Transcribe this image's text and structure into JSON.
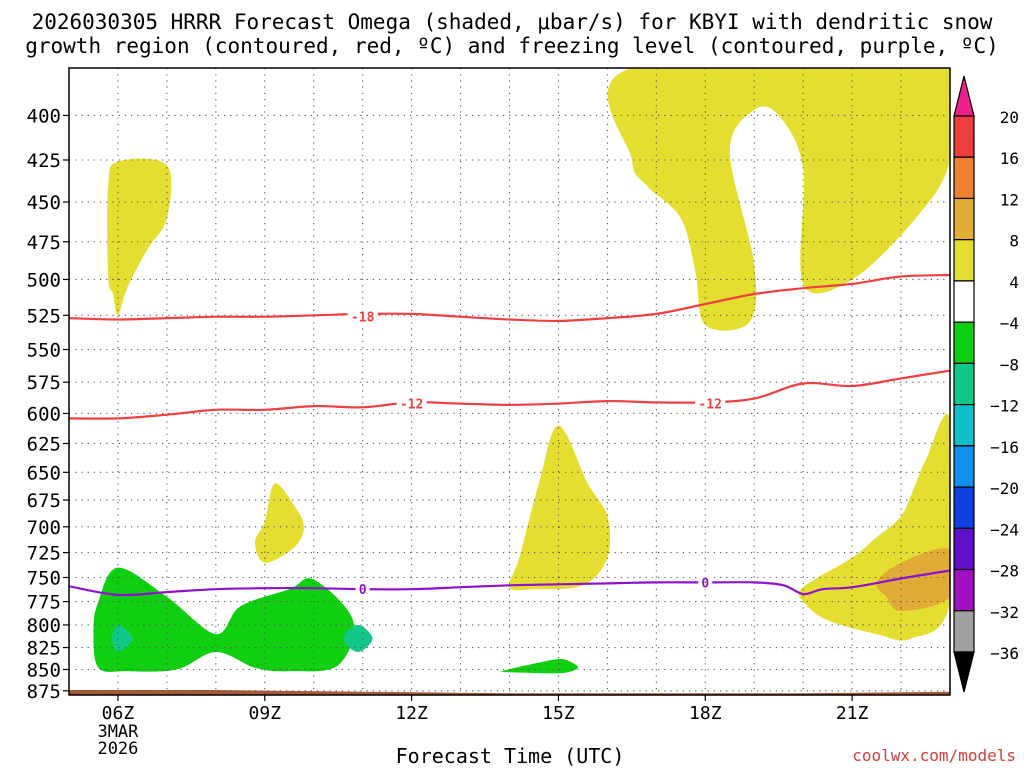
{
  "title": {
    "line1": "2026030305 HRRR Forecast Omega (shaded, μbar/s) for KBYI with dendritic snow",
    "line2": "growth region (contoured, red, ºC) and freezing level (contoured, purple, ºC)"
  },
  "credit": "coolwx.com/models",
  "chart_data": {
    "type": "contour",
    "title": "2026030305 HRRR Forecast Omega (shaded, μbar/s) for KBYI with dendritic snow growth region (contoured, red, ºC) and freezing level (contoured, purple, ºC)",
    "xlabel": "Forecast Time (UTC)",
    "ylabel": "",
    "x_range_hours": [
      5.0,
      23.0
    ],
    "y_range_mb": [
      375,
      880
    ],
    "y_scale": "log",
    "grid": true,
    "x_ticks": [
      {
        "hour": 6,
        "label": "06Z",
        "sub": [
          "3MAR",
          "2026"
        ]
      },
      {
        "hour": 9,
        "label": "09Z"
      },
      {
        "hour": 12,
        "label": "12Z"
      },
      {
        "hour": 15,
        "label": "15Z"
      },
      {
        "hour": 18,
        "label": "18Z"
      },
      {
        "hour": 21,
        "label": "21Z"
      }
    ],
    "y_ticks": [
      400,
      425,
      450,
      475,
      500,
      525,
      550,
      575,
      600,
      625,
      650,
      675,
      700,
      725,
      750,
      775,
      800,
      825,
      850,
      875
    ],
    "colorbar": {
      "levels": [
        "20",
        "16",
        "12",
        "8",
        "4",
        "−4",
        "−8",
        "−12",
        "−16",
        "−20",
        "−24",
        "−28",
        "−32",
        "−36"
      ],
      "colors": [
        "#ee1f8b",
        "#ee3d3d",
        "#ee8030",
        "#e0ac35",
        "#e3de30",
        "#ffffff",
        "#10cf10",
        "#10c88a",
        "#10c0c8",
        "#1090ee",
        "#1040e0",
        "#6010c8",
        "#a010c0",
        "#a0a0a0",
        "#000000"
      ]
    },
    "contours": [
      {
        "name": "-18",
        "color": "#ee4040",
        "points": [
          [
            5.0,
            527
          ],
          [
            6.0,
            528
          ],
          [
            7.0,
            527
          ],
          [
            8.0,
            526
          ],
          [
            9.0,
            526
          ],
          [
            10.0,
            525
          ],
          [
            11.0,
            524
          ],
          [
            12.0,
            524
          ],
          [
            13.0,
            526
          ],
          [
            14.0,
            528
          ],
          [
            15.0,
            529
          ],
          [
            16.0,
            527
          ],
          [
            17.0,
            524
          ],
          [
            18.0,
            517
          ],
          [
            19.0,
            510
          ],
          [
            20.0,
            506
          ],
          [
            21.0,
            503
          ],
          [
            22.0,
            498
          ],
          [
            23.0,
            497
          ]
        ]
      },
      {
        "name": "-12",
        "color": "#ee4040",
        "points": [
          [
            5.0,
            604
          ],
          [
            6.0,
            604
          ],
          [
            7.0,
            601
          ],
          [
            8.0,
            597
          ],
          [
            9.0,
            597
          ],
          [
            10.0,
            594
          ],
          [
            11.0,
            595
          ],
          [
            12.0,
            591
          ],
          [
            13.0,
            592
          ],
          [
            14.0,
            593
          ],
          [
            15.0,
            592
          ],
          [
            16.0,
            590
          ],
          [
            17.0,
            591
          ],
          [
            18.0,
            591
          ],
          [
            19.0,
            588
          ],
          [
            20.0,
            576
          ],
          [
            21.0,
            578
          ],
          [
            22.0,
            572
          ],
          [
            23.0,
            566
          ]
        ]
      },
      {
        "name": "0",
        "color": "#9010d0",
        "points": [
          [
            5.0,
            759
          ],
          [
            6.0,
            768
          ],
          [
            7.0,
            765
          ],
          [
            8.0,
            762
          ],
          [
            9.0,
            761
          ],
          [
            10.0,
            761
          ],
          [
            11.0,
            762
          ],
          [
            12.0,
            762
          ],
          [
            13.0,
            760
          ],
          [
            14.0,
            758
          ],
          [
            15.0,
            757
          ],
          [
            16.0,
            756
          ],
          [
            17.0,
            755
          ],
          [
            18.0,
            755
          ],
          [
            19.0,
            755
          ],
          [
            19.6,
            758
          ],
          [
            20.0,
            767
          ],
          [
            20.4,
            762
          ],
          [
            21.0,
            760
          ],
          [
            22.0,
            751
          ],
          [
            23.0,
            743
          ]
        ]
      }
    ],
    "contour_labels": [
      {
        "text": "-18",
        "hour": 11.0,
        "mb": 526,
        "color": "#ee4040"
      },
      {
        "text": "-12",
        "hour": 12.0,
        "mb": 592,
        "color": "#ee4040"
      },
      {
        "text": "-12",
        "hour": 18.1,
        "mb": 592,
        "color": "#ee4040"
      },
      {
        "text": "0",
        "hour": 11.0,
        "mb": 762,
        "color": "#9010d0"
      },
      {
        "text": "0",
        "hour": 18.0,
        "mb": 755,
        "color": "#9010d0"
      }
    ],
    "shaded_regions": [
      {
        "value": "4 to 8",
        "color": "#e3de30",
        "points": [
          [
            5.8,
            498
          ],
          [
            5.8,
            440
          ],
          [
            6.0,
            426
          ],
          [
            7.0,
            428
          ],
          [
            7.0,
            460
          ],
          [
            6.6,
            480
          ],
          [
            6.2,
            505
          ],
          [
            6.0,
            525
          ],
          [
            5.9,
            510
          ]
        ]
      },
      {
        "value": "4 to 8",
        "color": "#e3de30",
        "points": [
          [
            9.0,
            695
          ],
          [
            9.2,
            660
          ],
          [
            9.6,
            680
          ],
          [
            9.8,
            700
          ],
          [
            9.6,
            720
          ],
          [
            9.0,
            735
          ],
          [
            8.8,
            715
          ]
        ]
      },
      {
        "value": "4 to 8",
        "color": "#e3de30",
        "points": [
          [
            14.0,
            760
          ],
          [
            14.2,
            730
          ],
          [
            14.6,
            660
          ],
          [
            15.0,
            610
          ],
          [
            15.6,
            660
          ],
          [
            16.0,
            690
          ],
          [
            16.0,
            730
          ],
          [
            15.5,
            758
          ],
          [
            14.5,
            762
          ]
        ]
      },
      {
        "value": "4 to 8",
        "color": "#e3de30",
        "points": [
          [
            16.5,
            375
          ],
          [
            23.0,
            375
          ],
          [
            23.0,
            425
          ],
          [
            22.3,
            460
          ],
          [
            21.0,
            500
          ],
          [
            20.0,
            503
          ],
          [
            20.0,
            430
          ],
          [
            19.5,
            400
          ],
          [
            19.0,
            397
          ],
          [
            18.5,
            420
          ],
          [
            19.0,
            490
          ],
          [
            18.9,
            530
          ],
          [
            18.0,
            532
          ],
          [
            17.8,
            495
          ],
          [
            17.5,
            460
          ],
          [
            16.8,
            440
          ],
          [
            16.5,
            425
          ]
        ]
      },
      {
        "value": "4 to 8",
        "color": "#e3de30",
        "points": [
          [
            20.0,
            760
          ],
          [
            21.0,
            730
          ],
          [
            21.5,
            710
          ],
          [
            22.0,
            690
          ],
          [
            22.3,
            660
          ],
          [
            22.5,
            640
          ],
          [
            23.0,
            605
          ],
          [
            23.0,
            775
          ],
          [
            22.2,
            815
          ],
          [
            21.5,
            810
          ],
          [
            20.5,
            795
          ],
          [
            20.0,
            775
          ]
        ]
      },
      {
        "value": "8 to 12",
        "color": "#e0ac35",
        "points": [
          [
            21.5,
            755
          ],
          [
            22.0,
            735
          ],
          [
            23.0,
            722
          ],
          [
            23.0,
            770
          ],
          [
            22.0,
            785
          ],
          [
            21.7,
            770
          ]
        ]
      },
      {
        "value": "-4 to -8",
        "color": "#10cf10",
        "points": [
          [
            5.5,
            805
          ],
          [
            5.6,
            775
          ],
          [
            6.0,
            740
          ],
          [
            7.0,
            770
          ],
          [
            8.0,
            810
          ],
          [
            8.5,
            780
          ],
          [
            9.5,
            762
          ],
          [
            10.0,
            752
          ],
          [
            10.8,
            795
          ],
          [
            10.5,
            845
          ],
          [
            9.5,
            852
          ],
          [
            8.8,
            848
          ],
          [
            8.0,
            830
          ],
          [
            7.2,
            850
          ],
          [
            6.2,
            852
          ],
          [
            5.6,
            848
          ]
        ]
      },
      {
        "value": "-4 to -8",
        "color": "#10cf10",
        "points": [
          [
            13.9,
            851
          ],
          [
            14.6,
            842
          ],
          [
            15.0,
            838
          ],
          [
            15.2,
            840
          ],
          [
            15.4,
            848
          ],
          [
            15.1,
            854
          ],
          [
            14.5,
            854
          ],
          [
            13.9,
            853
          ]
        ]
      },
      {
        "value": "-8 to -12",
        "color": "#10c88a",
        "points": [
          [
            5.88,
            815
          ],
          [
            6.0,
            800
          ],
          [
            6.3,
            815
          ],
          [
            6.0,
            830
          ]
        ]
      },
      {
        "value": "-8 to -12",
        "color": "#10c88a",
        "points": [
          [
            10.6,
            815
          ],
          [
            10.9,
            800
          ],
          [
            11.2,
            815
          ],
          [
            10.9,
            830
          ]
        ]
      }
    ],
    "terrain": {
      "color": "#a65a3a",
      "points": [
        [
          5.0,
          874
        ],
        [
          8.0,
          874
        ],
        [
          11.0,
          876
        ],
        [
          14.0,
          878
        ],
        [
          17.0,
          878
        ],
        [
          20.0,
          878
        ],
        [
          23.0,
          876
        ]
      ]
    }
  }
}
